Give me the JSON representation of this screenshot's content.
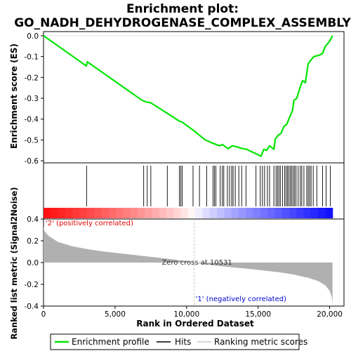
{
  "chart_data": {
    "type": "line",
    "title_line1": "Enrichment plot:",
    "title_line2": "GO_NADH_DEHYDROGENASE_COMPLEX_ASSEMBLY",
    "xlabel": "Rank in Ordered Dataset",
    "ylabel_top": "Enrichment score (ES)",
    "ylabel_bottom": "Ranked list metric (Signal2Noise)",
    "x_range": [
      0,
      21000
    ],
    "x_ticks": [
      0,
      5000,
      10000,
      15000,
      20000
    ],
    "x_tick_labels": [
      "0",
      "5,000",
      "10,000",
      "15,000",
      "20,000"
    ],
    "es_ylim": [
      -0.61,
      0.02
    ],
    "es_ticks": [
      0.0,
      -0.1,
      -0.2,
      -0.3,
      -0.4,
      -0.5,
      -0.6
    ],
    "es_tick_labels": [
      "0.0",
      "-0.1",
      "-0.2",
      "-0.3",
      "-0.4",
      "-0.5",
      "-0.6"
    ],
    "metric_ylim": [
      -0.4,
      0.4
    ],
    "metric_ticks": [
      0.4,
      0.2,
      0.0,
      -0.2,
      -0.4
    ],
    "metric_tick_labels": [
      "0.4",
      "0.2",
      "0.0",
      "-0.2",
      "-0.4"
    ],
    "n_genes": 20200,
    "zero_cross": 10531,
    "zero_cross_label": "Zero cross at 10531",
    "pos_label": "'2' (positively correlated)",
    "neg_label": "'1' (negatively correlated)",
    "es_curve": [
      [
        0,
        0.0
      ],
      [
        3000,
        -0.145
      ],
      [
        3050,
        -0.125
      ],
      [
        6900,
        -0.31
      ],
      [
        7200,
        -0.318
      ],
      [
        7500,
        -0.322
      ],
      [
        8600,
        -0.37
      ],
      [
        9500,
        -0.41
      ],
      [
        9700,
        -0.415
      ],
      [
        10500,
        -0.455
      ],
      [
        10800,
        -0.472
      ],
      [
        11300,
        -0.5
      ],
      [
        11800,
        -0.515
      ],
      [
        12300,
        -0.528
      ],
      [
        12500,
        -0.522
      ],
      [
        12900,
        -0.542
      ],
      [
        13200,
        -0.528
      ],
      [
        13500,
        -0.533
      ],
      [
        13800,
        -0.54
      ],
      [
        14200,
        -0.545
      ],
      [
        14500,
        -0.555
      ],
      [
        14900,
        -0.568
      ],
      [
        15200,
        -0.578
      ],
      [
        15400,
        -0.545
      ],
      [
        15600,
        -0.55
      ],
      [
        15800,
        -0.528
      ],
      [
        16100,
        -0.545
      ],
      [
        16200,
        -0.495
      ],
      [
        16400,
        -0.478
      ],
      [
        16600,
        -0.468
      ],
      [
        16800,
        -0.435
      ],
      [
        17000,
        -0.425
      ],
      [
        17200,
        -0.39
      ],
      [
        17400,
        -0.36
      ],
      [
        17500,
        -0.31
      ],
      [
        17700,
        -0.3
      ],
      [
        17900,
        -0.255
      ],
      [
        18100,
        -0.215
      ],
      [
        18300,
        -0.225
      ],
      [
        18500,
        -0.135
      ],
      [
        18700,
        -0.115
      ],
      [
        18900,
        -0.1
      ],
      [
        19200,
        -0.095
      ],
      [
        19500,
        -0.085
      ],
      [
        19700,
        -0.05
      ],
      [
        19900,
        -0.035
      ],
      [
        20050,
        -0.02
      ],
      [
        20200,
        0.0
      ]
    ],
    "hits": [
      3010,
      7000,
      7250,
      7500,
      8650,
      9500,
      9600,
      9700,
      10450,
      10900,
      11400,
      11850,
      11950,
      12050,
      12350,
      12500,
      12600,
      12850,
      13000,
      13150,
      13250,
      13400,
      13650,
      13850,
      14150,
      14850,
      15150,
      15300,
      15450,
      15650,
      15800,
      16100,
      16250,
      16350,
      16450,
      16550,
      16700,
      16850,
      16950,
      17050,
      17150,
      17250,
      17350,
      17450,
      17550,
      17650,
      17800,
      17950,
      18050,
      18200,
      18400,
      18500,
      18600,
      18700,
      18850,
      19100,
      19500,
      19750,
      20050
    ],
    "metric_curve": [
      [
        0,
        0.34
      ],
      [
        30,
        0.3
      ],
      [
        300,
        0.25
      ],
      [
        1000,
        0.19
      ],
      [
        2000,
        0.15
      ],
      [
        3000,
        0.125
      ],
      [
        4000,
        0.105
      ],
      [
        5000,
        0.09
      ],
      [
        6000,
        0.075
      ],
      [
        7000,
        0.06
      ],
      [
        8000,
        0.045
      ],
      [
        9000,
        0.03
      ],
      [
        10000,
        0.012
      ],
      [
        10531,
        0.0
      ],
      [
        11500,
        -0.02
      ],
      [
        12500,
        -0.035
      ],
      [
        13500,
        -0.048
      ],
      [
        14500,
        -0.06
      ],
      [
        15500,
        -0.075
      ],
      [
        16500,
        -0.09
      ],
      [
        17500,
        -0.11
      ],
      [
        18500,
        -0.14
      ],
      [
        19200,
        -0.17
      ],
      [
        19700,
        -0.21
      ],
      [
        20000,
        -0.26
      ],
      [
        20150,
        -0.32
      ],
      [
        20200,
        -0.38
      ]
    ],
    "legend": [
      "Enrichment profile",
      "Hits",
      "Ranking metric scores"
    ],
    "colors": {
      "es_line": "#00e600",
      "hits": "#000000",
      "metric_fill": "#b0b0b0",
      "pos": "#e00000",
      "neg": "#0000d0",
      "zero_line": "#c8c8c8"
    }
  }
}
